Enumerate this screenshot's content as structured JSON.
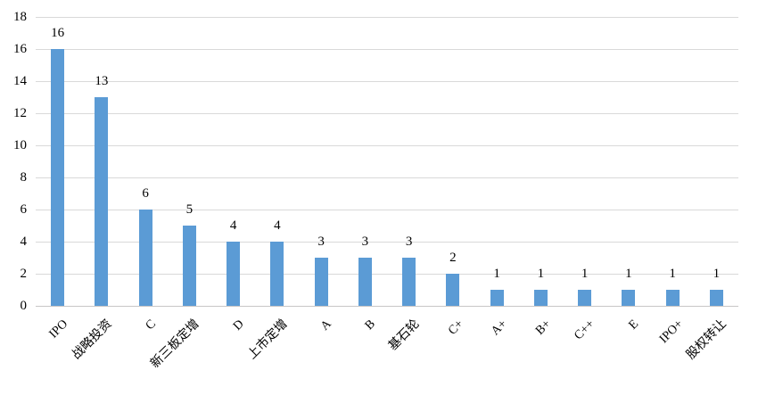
{
  "chart_data": {
    "type": "bar",
    "categories": [
      "IPO",
      "战略投资",
      "C",
      "新三板定增",
      "D",
      "上市定增",
      "A",
      "B",
      "基石轮",
      "C+",
      "A+",
      "B+",
      "C++",
      "E",
      "IPO+",
      "股权转让"
    ],
    "values": [
      16,
      13,
      6,
      5,
      4,
      4,
      3,
      3,
      3,
      2,
      1,
      1,
      1,
      1,
      1,
      1
    ],
    "title": "",
    "xlabel": "",
    "ylabel": "",
    "ylim": [
      0,
      18
    ],
    "yticks": [
      0,
      2,
      4,
      6,
      8,
      10,
      12,
      14,
      16,
      18
    ],
    "grid": true,
    "legend": "none",
    "data_labels": true,
    "x_label_rotation_deg": 45,
    "colors": {
      "bar": "#5B9BD5",
      "gridline": "#D9D9D9",
      "axis_line": "#C8C6C6",
      "text": "#000000"
    }
  }
}
